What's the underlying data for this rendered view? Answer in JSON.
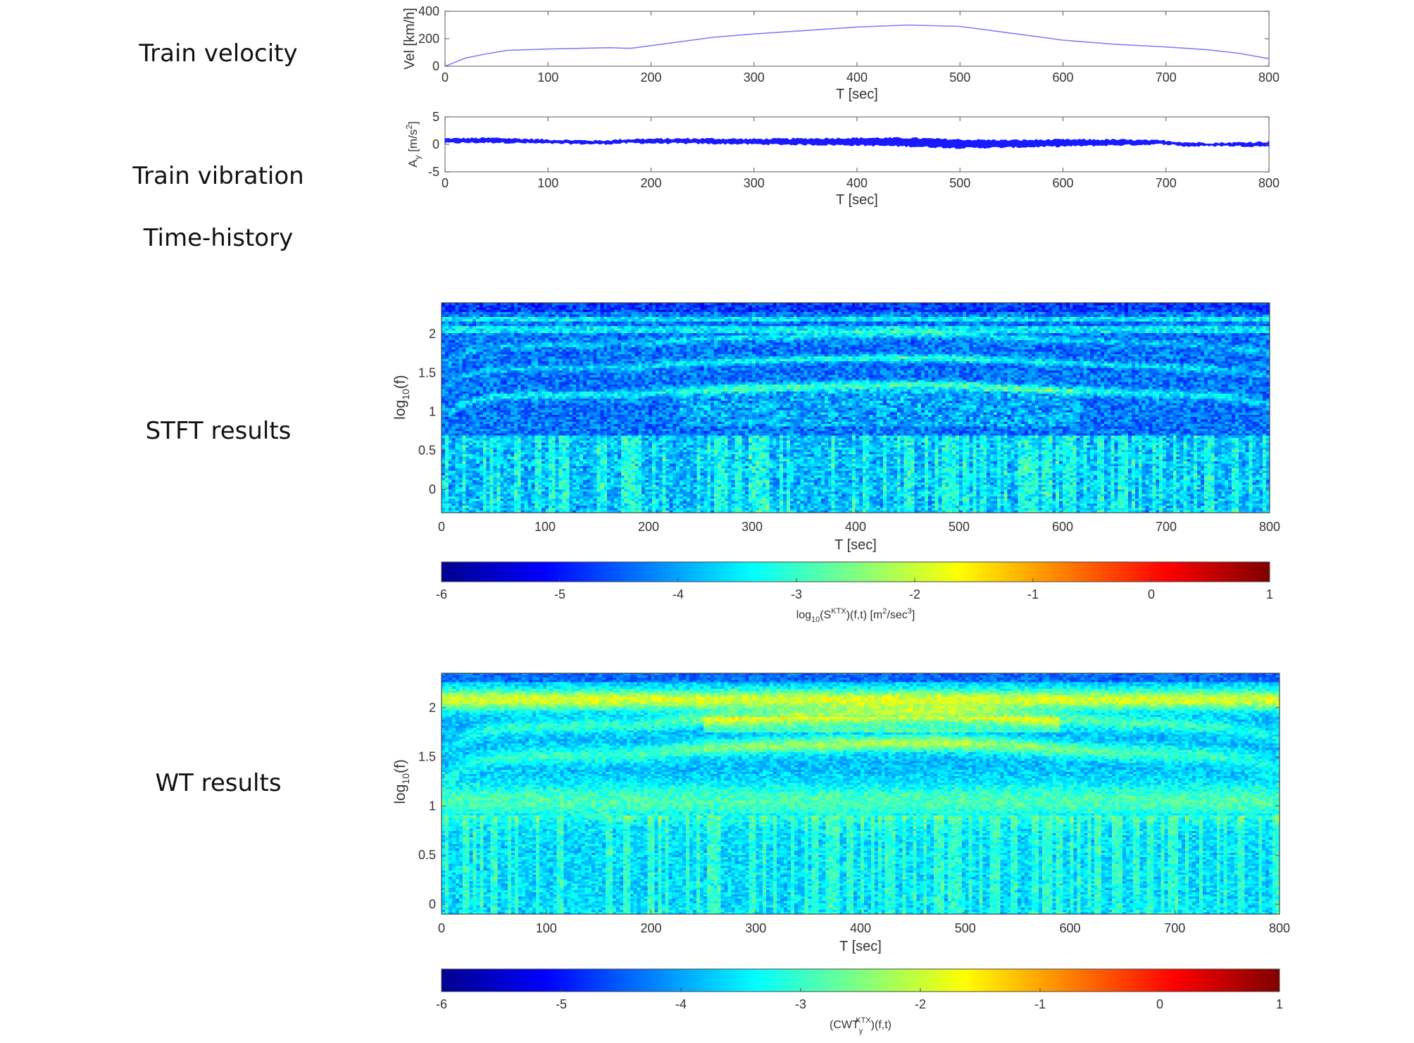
{
  "row_labels": {
    "velocity": "Train  velocity",
    "vibration_line1": "Train  vibration",
    "vibration_line2": "Time-history",
    "stft": "STFT  results",
    "wt": "WT  results"
  },
  "colors": {
    "velocity_line": "#7f7fff",
    "vibration_fill": "#1a1aff",
    "axis": "#555555"
  },
  "chart_data": [
    {
      "type": "line",
      "id": "velocity",
      "xlabel": "T [sec]",
      "ylabel": "Vel [km/h]",
      "xlim": [
        0,
        800
      ],
      "ylim": [
        0,
        400
      ],
      "xticks": [
        0,
        100,
        200,
        300,
        400,
        500,
        600,
        700,
        800
      ],
      "yticks": [
        0,
        200,
        400
      ],
      "series": [
        {
          "x": [
            0,
            10,
            20,
            40,
            60,
            80,
            100,
            130,
            160,
            180,
            200,
            230,
            260,
            300,
            350,
            400,
            450,
            500,
            530,
            570,
            600,
            650,
            700,
            740,
            770,
            800
          ],
          "y": [
            0,
            30,
            60,
            90,
            115,
            120,
            125,
            130,
            135,
            130,
            150,
            180,
            210,
            235,
            260,
            285,
            300,
            290,
            260,
            220,
            190,
            160,
            140,
            120,
            95,
            55
          ]
        }
      ]
    },
    {
      "type": "area",
      "id": "vibration",
      "xlabel": "T [sec]",
      "ylabel": "A_y [m/s^2]",
      "ylabel_main": "A",
      "ylabel_sub": "y",
      "ylabel_rest": " [m/s",
      "ylabel_sup": "2",
      "ylabel_end": "]",
      "xlim": [
        0,
        800
      ],
      "ylim": [
        -5,
        5
      ],
      "xticks": [
        0,
        100,
        200,
        300,
        400,
        500,
        600,
        700,
        800
      ],
      "yticks": [
        -5,
        0,
        5
      ],
      "series": [
        {
          "x": [
            0,
            50,
            100,
            150,
            180,
            250,
            300,
            350,
            400,
            450,
            500,
            550,
            600,
            650,
            700,
            720,
            750,
            800
          ],
          "upper": [
            1.0,
            1.1,
            0.8,
            0.6,
            0.9,
            1.0,
            0.9,
            1.0,
            1.1,
            1.1,
            0.8,
            0.7,
            0.8,
            0.8,
            0.6,
            0.3,
            0.2,
            0.4
          ],
          "lower": [
            0.3,
            0.4,
            0.2,
            0.1,
            0.3,
            0.2,
            0.1,
            0.0,
            -0.1,
            -0.3,
            -0.6,
            -0.5,
            -0.3,
            -0.1,
            0.1,
            -0.3,
            -0.2,
            -0.3
          ]
        }
      ]
    },
    {
      "type": "heatmap",
      "id": "stft",
      "xlabel": "T [sec]",
      "ylabel": "log10(f)",
      "xlim": [
        0,
        800
      ],
      "ylim": [
        -0.3,
        2.4
      ],
      "xticks": [
        0,
        100,
        200,
        300,
        400,
        500,
        600,
        700,
        800
      ],
      "yticks": [
        0,
        0.5,
        1,
        1.5,
        2
      ],
      "ytick_labels": [
        "0",
        "0.5",
        "1",
        "1.5",
        "2"
      ],
      "colorbar": {
        "colormap": "jet",
        "range": [
          -6,
          1
        ],
        "ticks": [
          -6,
          -5,
          -4,
          -3,
          -2,
          -1,
          0,
          1
        ],
        "label_parts": [
          "log",
          "10",
          "(S",
          "KTX",
          ")(f,t) [m",
          "2",
          "/sec",
          "3",
          "]"
        ]
      }
    },
    {
      "type": "heatmap",
      "id": "wt",
      "xlabel": "T [sec]",
      "ylabel": "log10(f)",
      "xlim": [
        0,
        800
      ],
      "ylim": [
        -0.1,
        2.35
      ],
      "xticks": [
        0,
        100,
        200,
        300,
        400,
        500,
        600,
        700,
        800
      ],
      "yticks": [
        0,
        0.5,
        1,
        1.5,
        2
      ],
      "ytick_labels": [
        "0",
        "0.5",
        "1",
        "1.5",
        "2"
      ],
      "colorbar": {
        "colormap": "jet",
        "range": [
          -6,
          1
        ],
        "ticks": [
          -6,
          -5,
          -4,
          -3,
          -2,
          -1,
          0,
          1
        ],
        "label_parts": [
          "(CWT",
          "y",
          "KTX",
          ")(f,t)"
        ]
      }
    }
  ]
}
